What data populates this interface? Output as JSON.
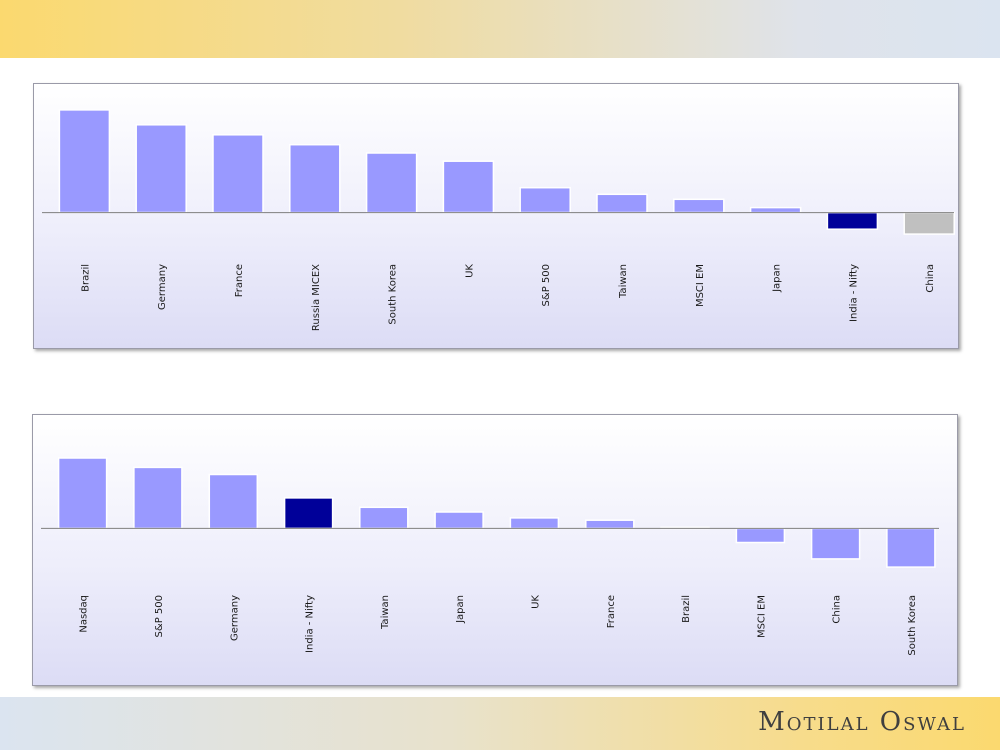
{
  "brand": {
    "name": "Motilal Oswal"
  },
  "colors": {
    "bar": "#9999ff",
    "highlight": "#000099",
    "muted": "#c0c0c0"
  },
  "chart_data": [
    {
      "type": "bar",
      "categories": [
        "Brazil",
        "Germany",
        "France",
        "Russia MICEX",
        "South Korea",
        "UK",
        "S&P 500",
        "Taiwan",
        "MSCI EM",
        "Japan",
        "India - Nifty",
        "China"
      ],
      "values": [
        62,
        53,
        47,
        41,
        36,
        31,
        15,
        11,
        8,
        3,
        -10,
        -13
      ],
      "highlight": {
        "India - Nifty": "#000099",
        "China": "#c0c0c0"
      },
      "ylim": [
        -19,
        68
      ],
      "grid": false,
      "legend": false
    },
    {
      "type": "bar",
      "categories": [
        "Nasdaq",
        "S&P 500",
        "Germany",
        "India - Nifty",
        "Taiwan",
        "Japan",
        "UK",
        "France",
        "Brazil",
        "MSCI EM",
        "China",
        "South Korea"
      ],
      "values": [
        30,
        26,
        23,
        13,
        9,
        7,
        4.5,
        3.5,
        0.5,
        -6,
        -13,
        -16.5
      ],
      "highlight": {
        "India - Nifty": "#000099"
      },
      "ylim": [
        -19,
        33
      ],
      "grid": false,
      "legend": false
    }
  ]
}
